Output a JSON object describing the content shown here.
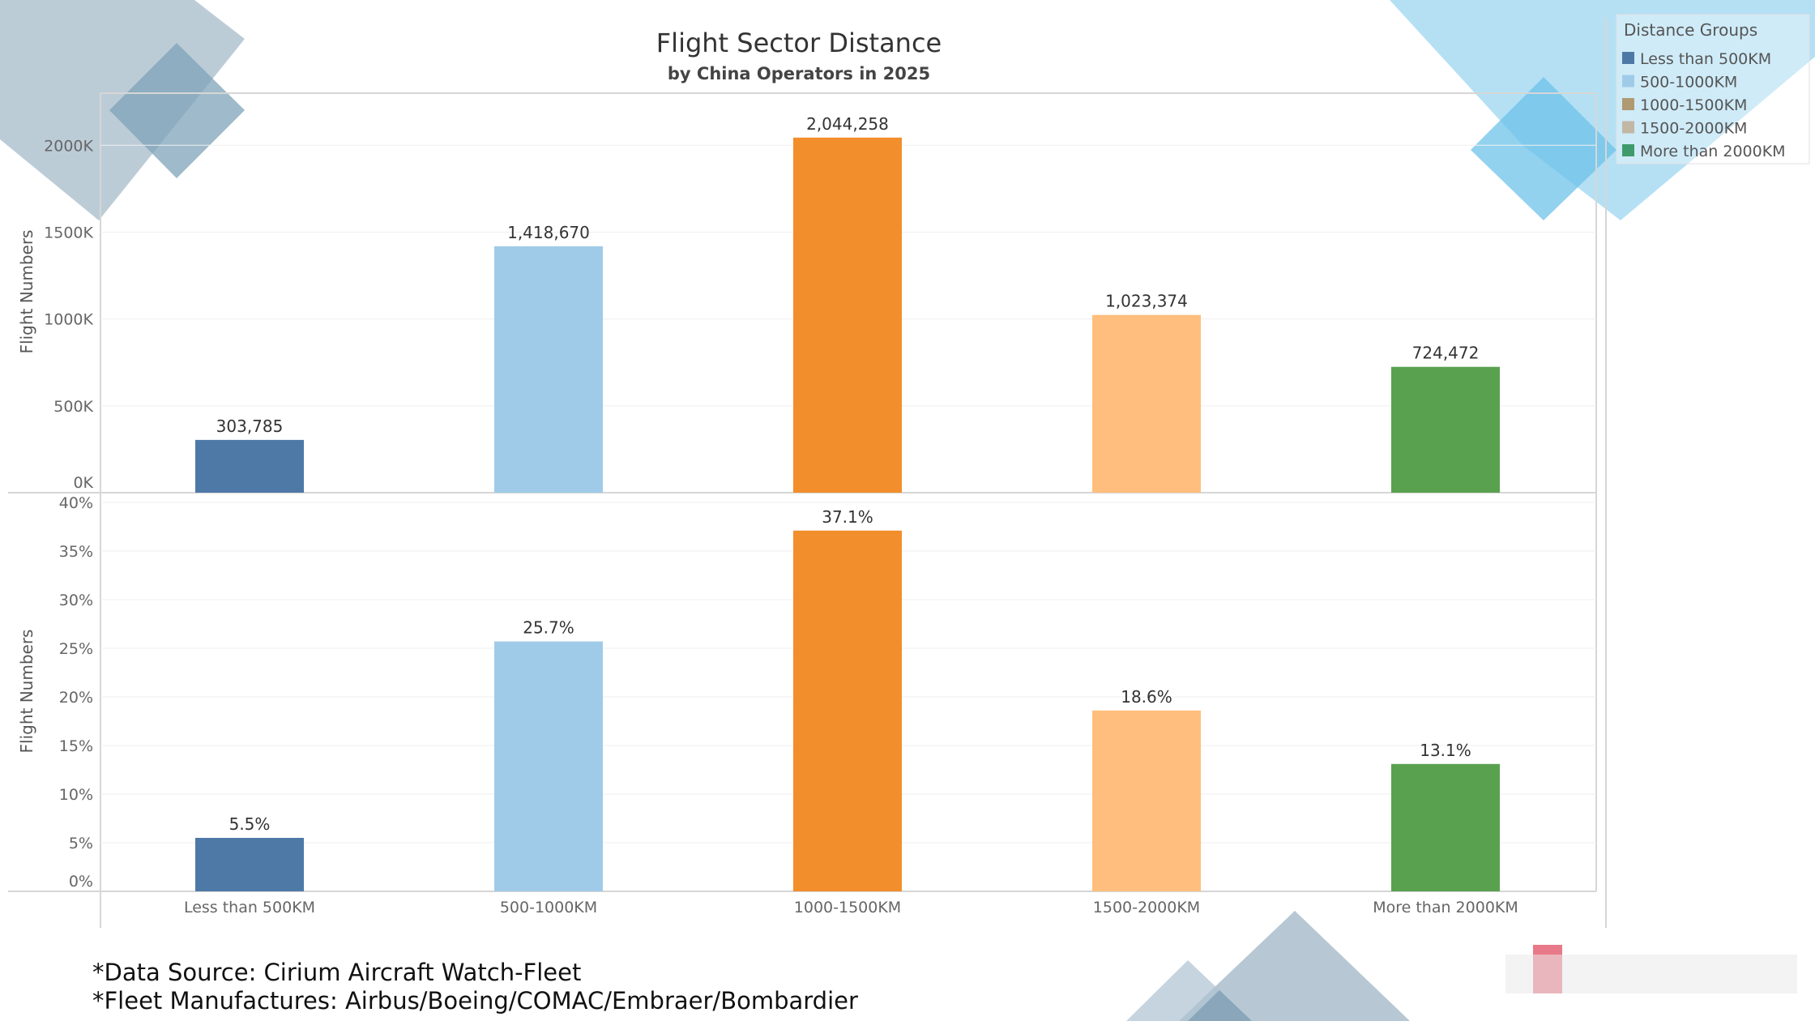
{
  "title": "Flight Sector Distance",
  "subtitle": "by China Operators in 2025",
  "legend": {
    "title": "Distance Groups",
    "items": [
      {
        "label": "Less than 500KM",
        "color": "#4e79a7"
      },
      {
        "label": "500-1000KM",
        "color": "#a0cbe8"
      },
      {
        "label": "1000-1500KM",
        "color": "#b09a72"
      },
      {
        "label": "1500-2000KM",
        "color": "#c2b6a4"
      },
      {
        "label": "More than 2000KM",
        "color": "#3f9b6b"
      }
    ]
  },
  "footnotes": {
    "source": "*Data Source: Cirium Aircraft Watch-Fleet",
    "manufacturers": "*Fleet Manufactures: Airbus/Boeing/COMAC/Embraer/Bombardier"
  },
  "chart_data": [
    {
      "type": "bar",
      "title": "Flight Sector Distance",
      "subtitle": "by China Operators in 2025",
      "ylabel": "Flight Numbers",
      "categories": [
        "Less than 500KM",
        "500-1000KM",
        "1000-1500KM",
        "1500-2000KM",
        "More than 2000KM"
      ],
      "values": [
        303785,
        1418670,
        2044258,
        1023374,
        724472
      ],
      "value_labels": [
        "303,785",
        "1,418,670",
        "2,044,258",
        "1,023,374",
        "724,472"
      ],
      "colors": [
        "#4e79a7",
        "#a0cbe8",
        "#f28e2b",
        "#ffbe7d",
        "#59a14f"
      ],
      "ylim": [
        0,
        2300000
      ],
      "yticks": [
        0,
        500000,
        1000000,
        1500000,
        2000000
      ],
      "ytick_labels": [
        "0K",
        "500K",
        "1000K",
        "1500K",
        "2000K"
      ],
      "grid": true
    },
    {
      "type": "bar",
      "ylabel": "Flight Numbers",
      "categories": [
        "Less than 500KM",
        "500-1000KM",
        "1000-1500KM",
        "1500-2000KM",
        "More than 2000KM"
      ],
      "values": [
        5.5,
        25.7,
        37.1,
        18.6,
        13.1
      ],
      "value_labels": [
        "5.5%",
        "25.7%",
        "37.1%",
        "18.6%",
        "13.1%"
      ],
      "colors": [
        "#4e79a7",
        "#a0cbe8",
        "#f28e2b",
        "#ffbe7d",
        "#59a14f"
      ],
      "ylim": [
        0,
        40
      ],
      "yticks": [
        0,
        5,
        10,
        15,
        20,
        25,
        30,
        35,
        40
      ],
      "ytick_labels": [
        "0%",
        "5%",
        "10%",
        "15%",
        "20%",
        "25%",
        "30%",
        "35%",
        "40%"
      ],
      "xlabel": "",
      "grid": true
    }
  ]
}
